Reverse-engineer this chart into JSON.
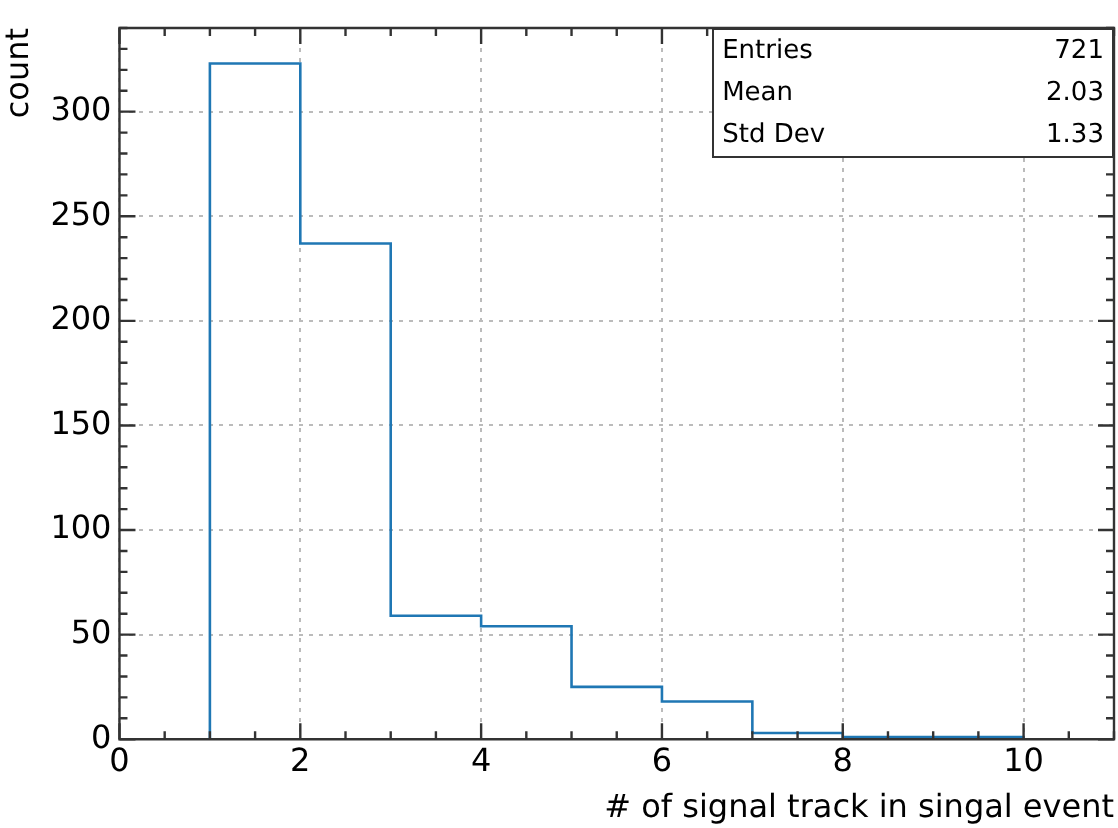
{
  "chart_data": {
    "type": "histogram",
    "xlabel": "# of signal track in singal event",
    "ylabel": "count",
    "bins": [
      0,
      1,
      2,
      3,
      4,
      5,
      6,
      7,
      8,
      9,
      10,
      11
    ],
    "values": [
      0,
      323,
      237,
      59,
      54,
      25,
      18,
      3,
      1,
      1,
      0
    ],
    "color": "#1f77b4",
    "xlim": [
      0,
      11
    ],
    "xticks": [
      0,
      2,
      4,
      6,
      8,
      10
    ],
    "ylim": [
      0,
      340
    ],
    "yticks": [
      0,
      50,
      100,
      150,
      200,
      250,
      300
    ],
    "grid": true,
    "annotations": [
      "Entries",
      "721",
      "Mean",
      "2.03",
      "Std Dev",
      "1.33"
    ]
  }
}
